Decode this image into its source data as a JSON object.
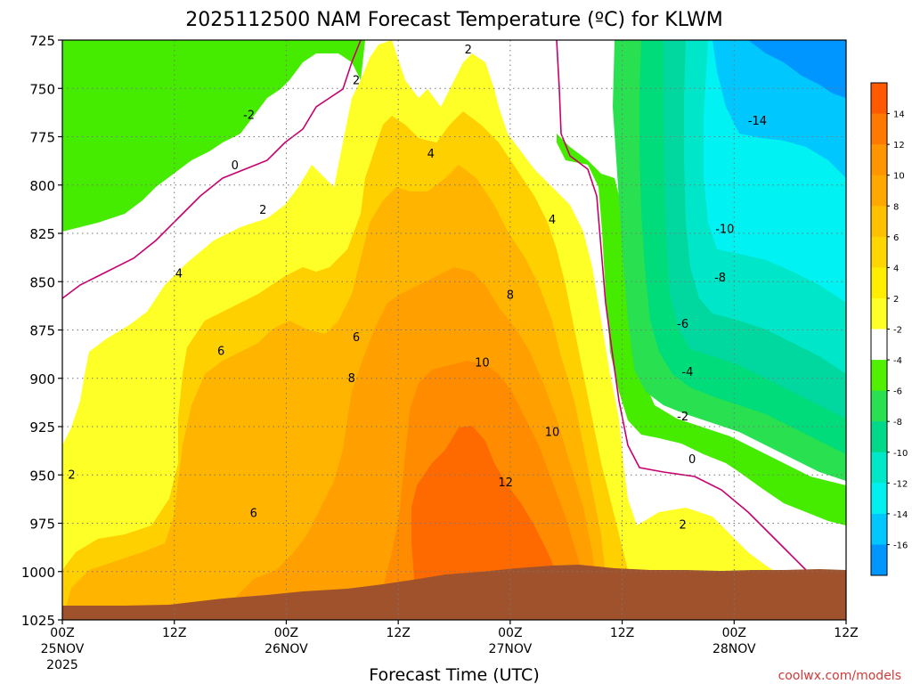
{
  "chart_data": {
    "type": "heatmap",
    "title": "2025112500 NAM Forecast Temperature (ºC) for KLWM",
    "xlabel": "Forecast Time (UTC)",
    "ylabel": "",
    "credit": "coolwx.com/models",
    "y_axis": {
      "scale": "pressure-inverted",
      "ylim": [
        1025,
        725
      ],
      "ticks": [
        "725",
        "750",
        "775",
        "800",
        "825",
        "850",
        "875",
        "900",
        "925",
        "950",
        "975",
        "1000",
        "1025"
      ]
    },
    "x_axis": {
      "xlim": [
        0,
        84
      ],
      "ticks": [
        {
          "x": 0,
          "label": "00Z",
          "date": "25NOV",
          "year": "2025"
        },
        {
          "x": 12,
          "label": "12Z",
          "date": "",
          "year": ""
        },
        {
          "x": 24,
          "label": "00Z",
          "date": "26NOV",
          "year": ""
        },
        {
          "x": 36,
          "label": "12Z",
          "date": "",
          "year": ""
        },
        {
          "x": 48,
          "label": "00Z",
          "date": "27NOV",
          "year": ""
        },
        {
          "x": 60,
          "label": "12Z",
          "date": "",
          "year": ""
        },
        {
          "x": 72,
          "label": "00Z",
          "date": "28NOV",
          "year": ""
        },
        {
          "x": 84,
          "label": "12Z",
          "date": "",
          "year": ""
        }
      ]
    },
    "grid": true,
    "colorbar": {
      "placement": "right",
      "labels": [
        "14",
        "12",
        "10",
        "8",
        "6",
        "4",
        "2",
        "-2",
        "-4",
        "-6",
        "-8",
        "-10",
        "-12",
        "-14",
        "-16"
      ],
      "colors": [
        "#ff5a00",
        "#ff7800",
        "#ff9600",
        "#ffa800",
        "#ffc000",
        "#ffd700",
        "#ffee00",
        "#ffff28",
        "#ffffff",
        "#50f000",
        "#28e050",
        "#00d88a",
        "#00e8c8",
        "#00f0f0",
        "#00c8ff",
        "#0096ff"
      ]
    },
    "fill_colors": {
      "t_ge_12": "#ff6a00",
      "t_10_12": "#ff8c00",
      "t_8_10": "#ffa000",
      "t_6_8": "#ffb400",
      "t_4_6": "#ffd000",
      "t_2_4": "#ffff28",
      "t_m2_2": "#ffffff",
      "t_m4_m2": "#46ec00",
      "t_m6_m4": "#28e050",
      "t_m8_m6": "#00dc7a",
      "t_m10_m8": "#00d8a0",
      "t_m12_m10": "#00e6c8",
      "t_m14_m12": "#00f2f2",
      "t_lt_m14": "#00c8ff",
      "t_lt_m16": "#0096ff",
      "terrain": "#a0522d",
      "zero_isotherm": "#c8006e"
    },
    "contour_labels": [
      {
        "value": "2",
        "x": 1,
        "p": 950
      },
      {
        "value": "4",
        "x": 12.5,
        "p": 846
      },
      {
        "value": "6",
        "x": 17,
        "p": 886
      },
      {
        "value": "6",
        "x": 20.5,
        "p": 970
      },
      {
        "value": "2",
        "x": 21.5,
        "p": 813
      },
      {
        "value": "0",
        "x": 18.5,
        "p": 790
      },
      {
        "value": "-2",
        "x": 20,
        "p": 764
      },
      {
        "value": "2",
        "x": 31.5,
        "p": 746
      },
      {
        "value": "6",
        "x": 31.5,
        "p": 879
      },
      {
        "value": "8",
        "x": 31,
        "p": 900
      },
      {
        "value": "4",
        "x": 39.5,
        "p": 784
      },
      {
        "value": "2",
        "x": 43.5,
        "p": 730
      },
      {
        "value": "10",
        "x": 45,
        "p": 892
      },
      {
        "value": "8",
        "x": 48,
        "p": 857
      },
      {
        "value": "12",
        "x": 47.5,
        "p": 954
      },
      {
        "value": "4",
        "x": 52.5,
        "p": 818
      },
      {
        "value": "10",
        "x": 52.5,
        "p": 928
      },
      {
        "value": "2",
        "x": 66.5,
        "p": 976
      },
      {
        "value": "0",
        "x": 67.5,
        "p": 942
      },
      {
        "value": "-2",
        "x": 66.5,
        "p": 920
      },
      {
        "value": "-4",
        "x": 67,
        "p": 897
      },
      {
        "value": "-6",
        "x": 66.5,
        "p": 872
      },
      {
        "value": "-8",
        "x": 70.5,
        "p": 848
      },
      {
        "value": "-10",
        "x": 71,
        "p": 823
      },
      {
        "value": "-14",
        "x": 74.5,
        "p": 767
      }
    ]
  }
}
